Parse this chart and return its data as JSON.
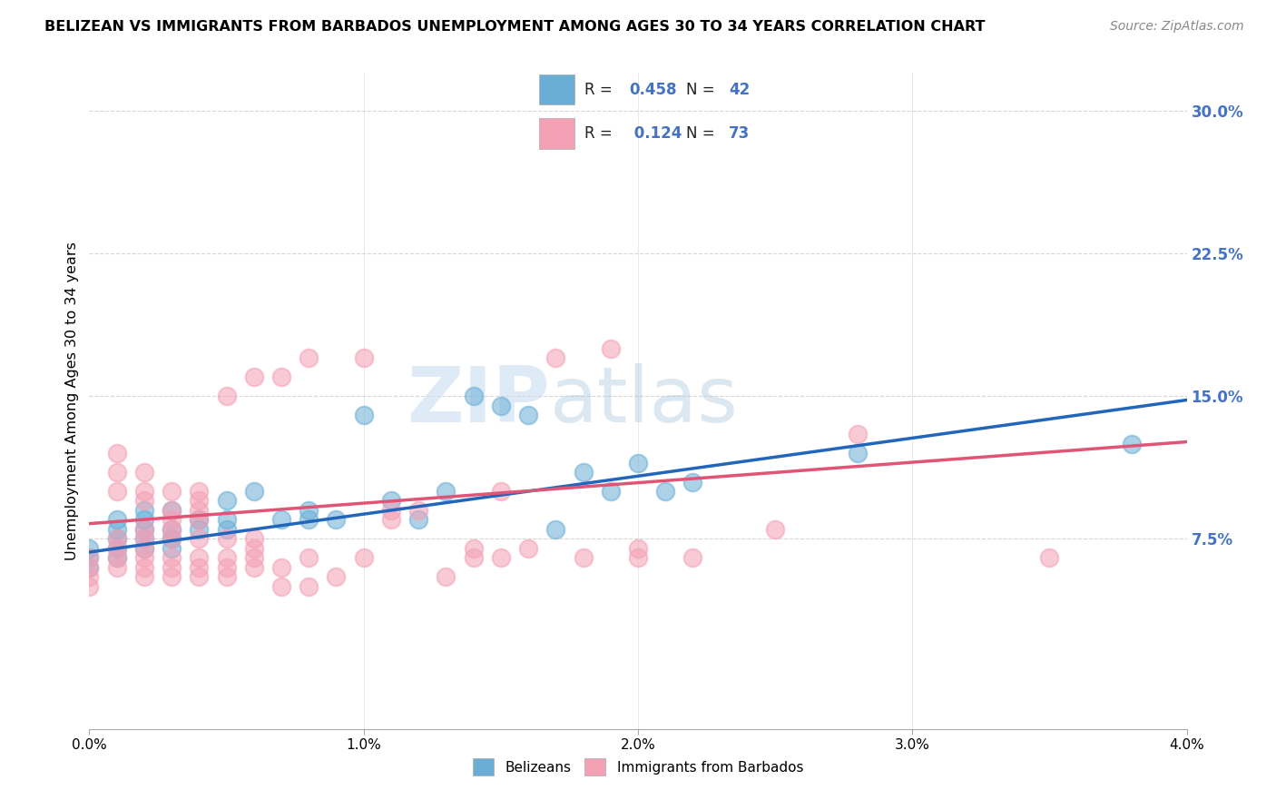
{
  "title": "BELIZEAN VS IMMIGRANTS FROM BARBADOS UNEMPLOYMENT AMONG AGES 30 TO 34 YEARS CORRELATION CHART",
  "source": "Source: ZipAtlas.com",
  "ylabel": "Unemployment Among Ages 30 to 34 years",
  "xlim": [
    0.0,
    0.04
  ],
  "ylim": [
    -0.025,
    0.32
  ],
  "blue_color": "#6aaed6",
  "pink_color": "#f4a0b5",
  "blue_line_color": "#2266bb",
  "pink_line_color": "#e05575",
  "right_axis_color": "#4472c4",
  "text_color_blue": "#4472c4",
  "legend_label1": "Belizeans",
  "legend_label2": "Immigrants from Barbados",
  "watermark_zip": "ZIP",
  "watermark_atlas": "atlas",
  "blue_scatter_x": [
    0.0,
    0.0,
    0.0,
    0.001,
    0.001,
    0.001,
    0.001,
    0.001,
    0.002,
    0.002,
    0.002,
    0.002,
    0.002,
    0.003,
    0.003,
    0.003,
    0.003,
    0.004,
    0.004,
    0.005,
    0.005,
    0.005,
    0.006,
    0.007,
    0.008,
    0.008,
    0.009,
    0.01,
    0.011,
    0.012,
    0.013,
    0.014,
    0.015,
    0.016,
    0.017,
    0.018,
    0.019,
    0.02,
    0.021,
    0.022,
    0.028,
    0.038
  ],
  "blue_scatter_y": [
    0.06,
    0.065,
    0.07,
    0.065,
    0.07,
    0.075,
    0.08,
    0.085,
    0.07,
    0.075,
    0.08,
    0.085,
    0.09,
    0.07,
    0.075,
    0.08,
    0.09,
    0.08,
    0.085,
    0.08,
    0.085,
    0.095,
    0.1,
    0.085,
    0.085,
    0.09,
    0.085,
    0.14,
    0.095,
    0.085,
    0.1,
    0.15,
    0.145,
    0.14,
    0.08,
    0.11,
    0.1,
    0.115,
    0.1,
    0.105,
    0.12,
    0.125
  ],
  "pink_scatter_x": [
    0.0,
    0.0,
    0.0,
    0.0,
    0.001,
    0.001,
    0.001,
    0.001,
    0.001,
    0.001,
    0.001,
    0.002,
    0.002,
    0.002,
    0.002,
    0.002,
    0.002,
    0.002,
    0.002,
    0.002,
    0.003,
    0.003,
    0.003,
    0.003,
    0.003,
    0.003,
    0.003,
    0.003,
    0.004,
    0.004,
    0.004,
    0.004,
    0.004,
    0.004,
    0.004,
    0.004,
    0.005,
    0.005,
    0.005,
    0.005,
    0.005,
    0.006,
    0.006,
    0.006,
    0.006,
    0.006,
    0.007,
    0.007,
    0.007,
    0.008,
    0.008,
    0.008,
    0.009,
    0.01,
    0.01,
    0.011,
    0.011,
    0.012,
    0.013,
    0.014,
    0.014,
    0.015,
    0.015,
    0.016,
    0.017,
    0.018,
    0.019,
    0.02,
    0.02,
    0.022,
    0.025,
    0.028,
    0.035
  ],
  "pink_scatter_y": [
    0.05,
    0.055,
    0.06,
    0.065,
    0.06,
    0.065,
    0.07,
    0.075,
    0.1,
    0.11,
    0.12,
    0.055,
    0.06,
    0.065,
    0.07,
    0.075,
    0.08,
    0.095,
    0.1,
    0.11,
    0.055,
    0.06,
    0.065,
    0.075,
    0.08,
    0.085,
    0.09,
    0.1,
    0.055,
    0.06,
    0.065,
    0.075,
    0.085,
    0.09,
    0.095,
    0.1,
    0.055,
    0.06,
    0.065,
    0.075,
    0.15,
    0.06,
    0.065,
    0.07,
    0.075,
    0.16,
    0.05,
    0.06,
    0.16,
    0.05,
    0.065,
    0.17,
    0.055,
    0.065,
    0.17,
    0.085,
    0.09,
    0.09,
    0.055,
    0.065,
    0.07,
    0.065,
    0.1,
    0.07,
    0.17,
    0.065,
    0.175,
    0.065,
    0.07,
    0.065,
    0.08,
    0.13,
    0.065
  ],
  "blue_line_x0": 0.0,
  "blue_line_x1": 0.04,
  "blue_line_y0": 0.068,
  "blue_line_y1": 0.148,
  "pink_line_x0": 0.0,
  "pink_line_x1": 0.04,
  "pink_line_y0": 0.083,
  "pink_line_y1": 0.126
}
